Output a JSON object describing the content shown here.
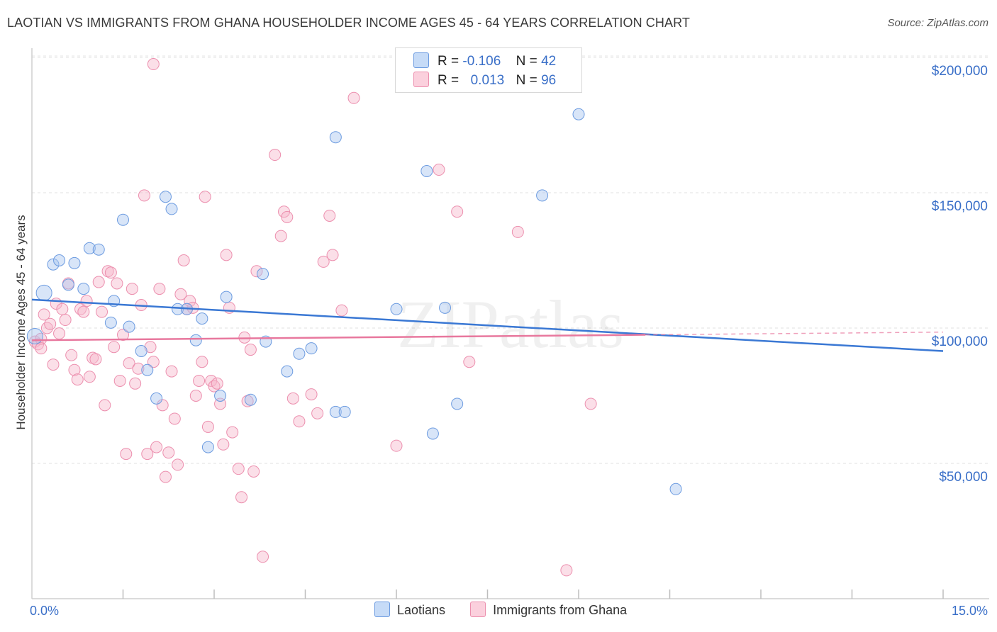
{
  "title": "LAOTIAN VS IMMIGRANTS FROM GHANA HOUSEHOLDER INCOME AGES 45 - 64 YEARS CORRELATION CHART",
  "source": "Source: ZipAtlas.com",
  "legend": {
    "rows": [
      {
        "r_label": "R =",
        "r_value": "-0.106",
        "n_label": "N =",
        "n_value": "42",
        "color": "#a8c6f0"
      },
      {
        "r_label": "R =",
        "r_value": "0.013",
        "n_label": "N =",
        "n_value": "96",
        "color": "#f7b8cb"
      }
    ]
  },
  "bottom_legend": [
    "Laotians",
    "Immigrants from Ghana"
  ],
  "watermark": "ZIPatlas",
  "colors": {
    "blue": "#3a78d4",
    "pink": "#e8789e",
    "blue_fill": "#a8c6f0",
    "pink_fill": "#f7b8cb",
    "grid": "#dcdcdc",
    "tick_text": "#3a6fc8"
  },
  "chart_data": {
    "type": "scatter",
    "title": "LAOTIAN VS IMMIGRANTS FROM GHANA HOUSEHOLDER INCOME AGES 45 - 64 YEARS CORRELATION CHART",
    "xlabel": "",
    "ylabel": "Householder Income Ages 45 - 64 years",
    "xlim": [
      0,
      15
    ],
    "ylim": [
      0,
      210000
    ],
    "x_tick_labels": [
      "0.0%",
      "15.0%"
    ],
    "y_ticks": [
      50000,
      100000,
      150000,
      200000
    ],
    "y_tick_labels": [
      "$50,000",
      "$100,000",
      "$150,000",
      "$200,000"
    ],
    "grid": true,
    "series": [
      {
        "name": "Laotians",
        "r": -0.106,
        "n": 42,
        "trend": {
          "x": [
            0,
            15
          ],
          "y": [
            110500,
            91500
          ]
        },
        "points": [
          [
            0.05,
            97000
          ],
          [
            0.2,
            113000
          ],
          [
            0.35,
            123500
          ],
          [
            0.45,
            125000
          ],
          [
            0.6,
            116000
          ],
          [
            0.7,
            124000
          ],
          [
            0.85,
            114500
          ],
          [
            0.95,
            129500
          ],
          [
            1.1,
            129000
          ],
          [
            1.3,
            102000
          ],
          [
            1.35,
            110000
          ],
          [
            1.5,
            140000
          ],
          [
            1.6,
            100500
          ],
          [
            1.8,
            91500
          ],
          [
            1.9,
            84500
          ],
          [
            2.05,
            74000
          ],
          [
            2.2,
            148500
          ],
          [
            2.3,
            144000
          ],
          [
            2.4,
            107000
          ],
          [
            2.55,
            107000
          ],
          [
            2.7,
            95500
          ],
          [
            2.8,
            103500
          ],
          [
            2.9,
            56000
          ],
          [
            3.1,
            75000
          ],
          [
            3.2,
            111500
          ],
          [
            3.6,
            73500
          ],
          [
            3.8,
            120000
          ],
          [
            3.85,
            95000
          ],
          [
            4.2,
            84000
          ],
          [
            4.4,
            90500
          ],
          [
            4.6,
            92500
          ],
          [
            5.0,
            170500
          ],
          [
            5.0,
            69000
          ],
          [
            5.15,
            69000
          ],
          [
            6.0,
            107000
          ],
          [
            6.5,
            158000
          ],
          [
            6.6,
            61000
          ],
          [
            6.8,
            107500
          ],
          [
            7.0,
            72000
          ],
          [
            8.4,
            149000
          ],
          [
            9.0,
            179000
          ],
          [
            10.6,
            40500
          ]
        ]
      },
      {
        "name": "Immigrants from Ghana",
        "r": 0.013,
        "n": 96,
        "trend": {
          "x": [
            0,
            10.1
          ],
          "y": [
            95500,
            97500
          ]
        },
        "trend_dashed": {
          "x": [
            10.1,
            15
          ],
          "y": [
            97500,
            98500
          ]
        },
        "points": [
          [
            0.05,
            95000
          ],
          [
            0.1,
            94000
          ],
          [
            0.15,
            96000
          ],
          [
            0.2,
            105000
          ],
          [
            0.25,
            100000
          ],
          [
            0.3,
            101500
          ],
          [
            0.35,
            86500
          ],
          [
            0.4,
            109000
          ],
          [
            0.45,
            98000
          ],
          [
            0.5,
            107000
          ],
          [
            0.55,
            103000
          ],
          [
            0.6,
            116500
          ],
          [
            0.65,
            90000
          ],
          [
            0.7,
            84500
          ],
          [
            0.75,
            81000
          ],
          [
            0.8,
            107000
          ],
          [
            0.85,
            106000
          ],
          [
            0.9,
            110000
          ],
          [
            0.95,
            82000
          ],
          [
            1.0,
            89000
          ],
          [
            1.05,
            88500
          ],
          [
            1.1,
            117000
          ],
          [
            1.15,
            106000
          ],
          [
            1.2,
            71500
          ],
          [
            1.25,
            121000
          ],
          [
            1.3,
            120500
          ],
          [
            1.35,
            93000
          ],
          [
            1.4,
            116500
          ],
          [
            1.45,
            80500
          ],
          [
            1.5,
            97500
          ],
          [
            1.55,
            53500
          ],
          [
            1.6,
            87000
          ],
          [
            1.65,
            114500
          ],
          [
            1.7,
            79500
          ],
          [
            1.75,
            85000
          ],
          [
            1.8,
            108500
          ],
          [
            1.85,
            149000
          ],
          [
            1.9,
            53500
          ],
          [
            1.95,
            93000
          ],
          [
            2.0,
            87500
          ],
          [
            2.05,
            56000
          ],
          [
            2.1,
            114500
          ],
          [
            2.15,
            71500
          ],
          [
            2.2,
            45000
          ],
          [
            2.25,
            54000
          ],
          [
            2.3,
            84000
          ],
          [
            2.35,
            66500
          ],
          [
            2.4,
            49500
          ],
          [
            2.45,
            112500
          ],
          [
            2.5,
            125000
          ],
          [
            2.55,
            107000
          ],
          [
            2.6,
            110000
          ],
          [
            2.65,
            107500
          ],
          [
            2.7,
            75000
          ],
          [
            2.75,
            80500
          ],
          [
            2.8,
            87500
          ],
          [
            2.85,
            148500
          ],
          [
            2.9,
            63500
          ],
          [
            2.95,
            80500
          ],
          [
            3.0,
            78500
          ],
          [
            3.05,
            79500
          ],
          [
            3.1,
            72000
          ],
          [
            3.15,
            57000
          ],
          [
            3.2,
            127000
          ],
          [
            3.25,
            107500
          ],
          [
            3.3,
            61500
          ],
          [
            3.4,
            48000
          ],
          [
            3.45,
            37500
          ],
          [
            3.5,
            96500
          ],
          [
            3.55,
            73000
          ],
          [
            3.6,
            92000
          ],
          [
            3.65,
            47000
          ],
          [
            3.7,
            121000
          ],
          [
            3.8,
            15500
          ],
          [
            4.0,
            164000
          ],
          [
            4.1,
            134000
          ],
          [
            4.15,
            143000
          ],
          [
            4.2,
            141000
          ],
          [
            4.3,
            74000
          ],
          [
            4.4,
            65500
          ],
          [
            4.6,
            75500
          ],
          [
            4.7,
            68500
          ],
          [
            4.8,
            124500
          ],
          [
            4.9,
            141500
          ],
          [
            4.95,
            127000
          ],
          [
            5.1,
            106500
          ],
          [
            5.3,
            185000
          ],
          [
            6.0,
            56500
          ],
          [
            6.7,
            158500
          ],
          [
            7.0,
            143000
          ],
          [
            7.2,
            87500
          ],
          [
            8.0,
            135500
          ],
          [
            8.8,
            10500
          ],
          [
            9.2,
            72000
          ],
          [
            2.0,
            197500
          ],
          [
            0.15,
            92500
          ]
        ]
      }
    ]
  }
}
